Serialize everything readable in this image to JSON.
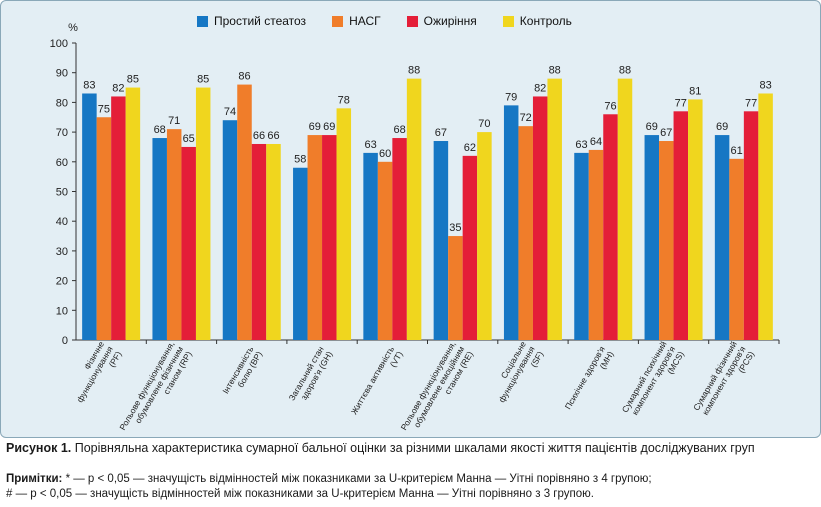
{
  "chart_data": {
    "type": "bar",
    "unit_label": "%",
    "ylim": [
      0,
      100
    ],
    "yticks": [
      0,
      10,
      20,
      30,
      40,
      50,
      60,
      70,
      80,
      90,
      100
    ],
    "categories": [
      [
        "Фізичне",
        "функціонування",
        "(PF)"
      ],
      [
        "Рольове функціонування,",
        "обумовлене фізичним",
        "станом (RP)"
      ],
      [
        "Інтенсивність",
        "болю (BP)"
      ],
      [
        "Загальний стан",
        "здоров'я (GH)"
      ],
      [
        "Життєва активність",
        "(VT)"
      ],
      [
        "Рольове функціонування,",
        "обумовлене емоційним",
        "станом (RE)"
      ],
      [
        "Соціальне",
        "функціонування",
        "(SF)"
      ],
      [
        "Психічне здоров'я",
        "(MH)"
      ],
      [
        "Сумарний психічний",
        "компонент здоров'я",
        "(MCS)"
      ],
      [
        "Сумарний фізичний",
        "компонент здоров'я",
        "(PCS)"
      ]
    ],
    "series": [
      {
        "name": "Простий стеатоз",
        "color": "#1677c4",
        "values": [
          83,
          68,
          74,
          58,
          63,
          67,
          79,
          63,
          69,
          69
        ]
      },
      {
        "name": "НАСГ",
        "color": "#f07d2a",
        "values": [
          75,
          71,
          86,
          69,
          60,
          35,
          72,
          64,
          67,
          61
        ]
      },
      {
        "name": "Ожиріння",
        "color": "#e41e38",
        "values": [
          82,
          65,
          66,
          69,
          68,
          62,
          82,
          76,
          77,
          77
        ]
      },
      {
        "name": "Контроль",
        "color": "#f0d61e",
        "values": [
          85,
          85,
          66,
          78,
          88,
          70,
          88,
          88,
          81,
          83
        ]
      }
    ],
    "grid": false,
    "legend_position": "top"
  },
  "caption": {
    "label": "Рисунок 1.",
    "text": "Порівняльна характеристика сумарної бальної оцінки за різними шкалами якості життя пацієнтів досліджуваних груп"
  },
  "notes": {
    "label": "Примітки:",
    "line1": "* — p < 0,05 — значущість відмінностей між показниками за U-критерієм Манна — Уітні порівняно з 4 групою;",
    "line2": "# — p < 0,05 — значущість відмінностей між показниками за U-критерієм Манна — Уітні порівняно з 3 групою."
  }
}
